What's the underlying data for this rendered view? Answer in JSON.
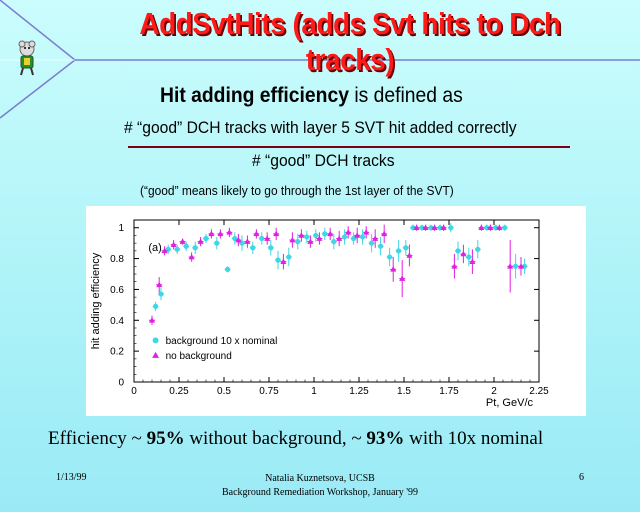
{
  "slide": {
    "title": "AddSvtHits (adds Svt hits to Dch tracks)",
    "definition_bold": "Hit adding efficiency",
    "definition_rest": " is defined as",
    "numerator": "# “good” DCH tracks with layer 5 SVT hit added correctly",
    "denominator": "# “good” DCH tracks",
    "note": "(“good” means likely to go through the 1st layer of the SVT)",
    "summary": {
      "part1": "Efficiency ~ ",
      "value1": "95%",
      "part2": " without background, ~ ",
      "value2": "93%",
      "part3": " with 10x nominal"
    },
    "footer": {
      "date": "1/13/99",
      "author": "Natalia Kuznetsova, UCSB",
      "event": "Background Remediation Workshop, January '99",
      "page": "6"
    }
  },
  "chart_data": {
    "type": "scatter",
    "panel_label": "(a)",
    "xlabel": "Pt, GeV/c",
    "ylabel": "hit adding efficiency",
    "xlim": [
      0,
      2.25
    ],
    "ylim": [
      0,
      1.05
    ],
    "x_ticks": [
      "0",
      "0.25",
      "0.5",
      "0.75",
      "1",
      "1.25",
      "1.5",
      "1.75",
      "2",
      "2.25"
    ],
    "y_ticks": [
      "0",
      "0.2",
      "0.4",
      "0.6",
      "0.8",
      "1"
    ],
    "grid": false,
    "legend_position": "bottom-left",
    "series": [
      {
        "name": "background 10 x nominal",
        "marker": "circle",
        "color": "#3fd6e6",
        "points": [
          [
            0.12,
            0.49,
            0.03
          ],
          [
            0.15,
            0.57,
            0.04
          ],
          [
            0.19,
            0.86,
            0.03
          ],
          [
            0.24,
            0.86,
            0.03
          ],
          [
            0.29,
            0.88,
            0.03
          ],
          [
            0.34,
            0.87,
            0.04
          ],
          [
            0.4,
            0.93,
            0.03
          ],
          [
            0.46,
            0.9,
            0.04
          ],
          [
            0.52,
            0.73,
            0.02
          ],
          [
            0.56,
            0.93,
            0.04
          ],
          [
            0.6,
            0.9,
            0.05
          ],
          [
            0.66,
            0.87,
            0.04
          ],
          [
            0.71,
            0.93,
            0.04
          ],
          [
            0.76,
            0.87,
            0.05
          ],
          [
            0.8,
            0.79,
            0.06
          ],
          [
            0.86,
            0.81,
            0.06
          ],
          [
            0.91,
            0.91,
            0.05
          ],
          [
            0.96,
            0.94,
            0.04
          ],
          [
            1.01,
            0.95,
            0.04
          ],
          [
            1.06,
            0.96,
            0.04
          ],
          [
            1.11,
            0.91,
            0.05
          ],
          [
            1.17,
            0.94,
            0.05
          ],
          [
            1.22,
            0.93,
            0.04
          ],
          [
            1.27,
            0.94,
            0.05
          ],
          [
            1.32,
            0.9,
            0.06
          ],
          [
            1.37,
            0.88,
            0.06
          ],
          [
            1.42,
            0.81,
            0.06
          ],
          [
            1.47,
            0.85,
            0.07
          ],
          [
            1.51,
            0.87,
            0.05
          ],
          [
            1.55,
            1.0,
            0.02
          ],
          [
            1.6,
            1.0,
            0.02
          ],
          [
            1.65,
            1.0,
            0.02
          ],
          [
            1.7,
            1.0,
            0.02
          ],
          [
            1.76,
            1.0,
            0.03
          ],
          [
            1.8,
            0.85,
            0.06
          ],
          [
            1.86,
            0.81,
            0.06
          ],
          [
            1.91,
            0.86,
            0.06
          ],
          [
            1.96,
            1.0,
            0.02
          ],
          [
            2.01,
            1.0,
            0.02
          ],
          [
            2.06,
            1.0,
            0.02
          ],
          [
            2.12,
            0.75,
            0.08
          ],
          [
            2.17,
            0.75,
            0.05
          ]
        ]
      },
      {
        "name": "no background",
        "marker": "triangle",
        "color": "#e020e0",
        "points": [
          [
            0.1,
            0.4,
            0.03
          ],
          [
            0.14,
            0.63,
            0.05
          ],
          [
            0.17,
            0.85,
            0.03
          ],
          [
            0.22,
            0.89,
            0.03
          ],
          [
            0.27,
            0.91,
            0.02
          ],
          [
            0.32,
            0.81,
            0.03
          ],
          [
            0.37,
            0.91,
            0.03
          ],
          [
            0.43,
            0.96,
            0.03
          ],
          [
            0.48,
            0.96,
            0.03
          ],
          [
            0.53,
            0.97,
            0.03
          ],
          [
            0.58,
            0.92,
            0.04
          ],
          [
            0.63,
            0.91,
            0.04
          ],
          [
            0.68,
            0.96,
            0.03
          ],
          [
            0.74,
            0.93,
            0.04
          ],
          [
            0.79,
            0.96,
            0.04
          ],
          [
            0.83,
            0.78,
            0.05
          ],
          [
            0.88,
            0.92,
            0.05
          ],
          [
            0.93,
            0.95,
            0.04
          ],
          [
            0.98,
            0.91,
            0.04
          ],
          [
            1.03,
            0.93,
            0.04
          ],
          [
            1.09,
            0.96,
            0.04
          ],
          [
            1.14,
            0.93,
            0.05
          ],
          [
            1.19,
            0.97,
            0.04
          ],
          [
            1.24,
            0.95,
            0.05
          ],
          [
            1.29,
            0.97,
            0.04
          ],
          [
            1.34,
            0.93,
            0.06
          ],
          [
            1.39,
            0.96,
            0.06
          ],
          [
            1.44,
            0.73,
            0.08
          ],
          [
            1.49,
            0.67,
            0.12
          ],
          [
            1.53,
            0.82,
            0.07
          ],
          [
            1.57,
            1.0,
            0.02
          ],
          [
            1.62,
            1.0,
            0.02
          ],
          [
            1.67,
            1.0,
            0.02
          ],
          [
            1.72,
            1.0,
            0.02
          ],
          [
            1.78,
            0.75,
            0.08
          ],
          [
            1.83,
            0.83,
            0.06
          ],
          [
            1.88,
            0.78,
            0.08
          ],
          [
            1.93,
            1.0,
            0.02
          ],
          [
            1.98,
            1.0,
            0.02
          ],
          [
            2.03,
            1.0,
            0.02
          ],
          [
            2.09,
            0.75,
            0.17
          ],
          [
            2.15,
            0.75,
            0.06
          ]
        ]
      }
    ]
  }
}
